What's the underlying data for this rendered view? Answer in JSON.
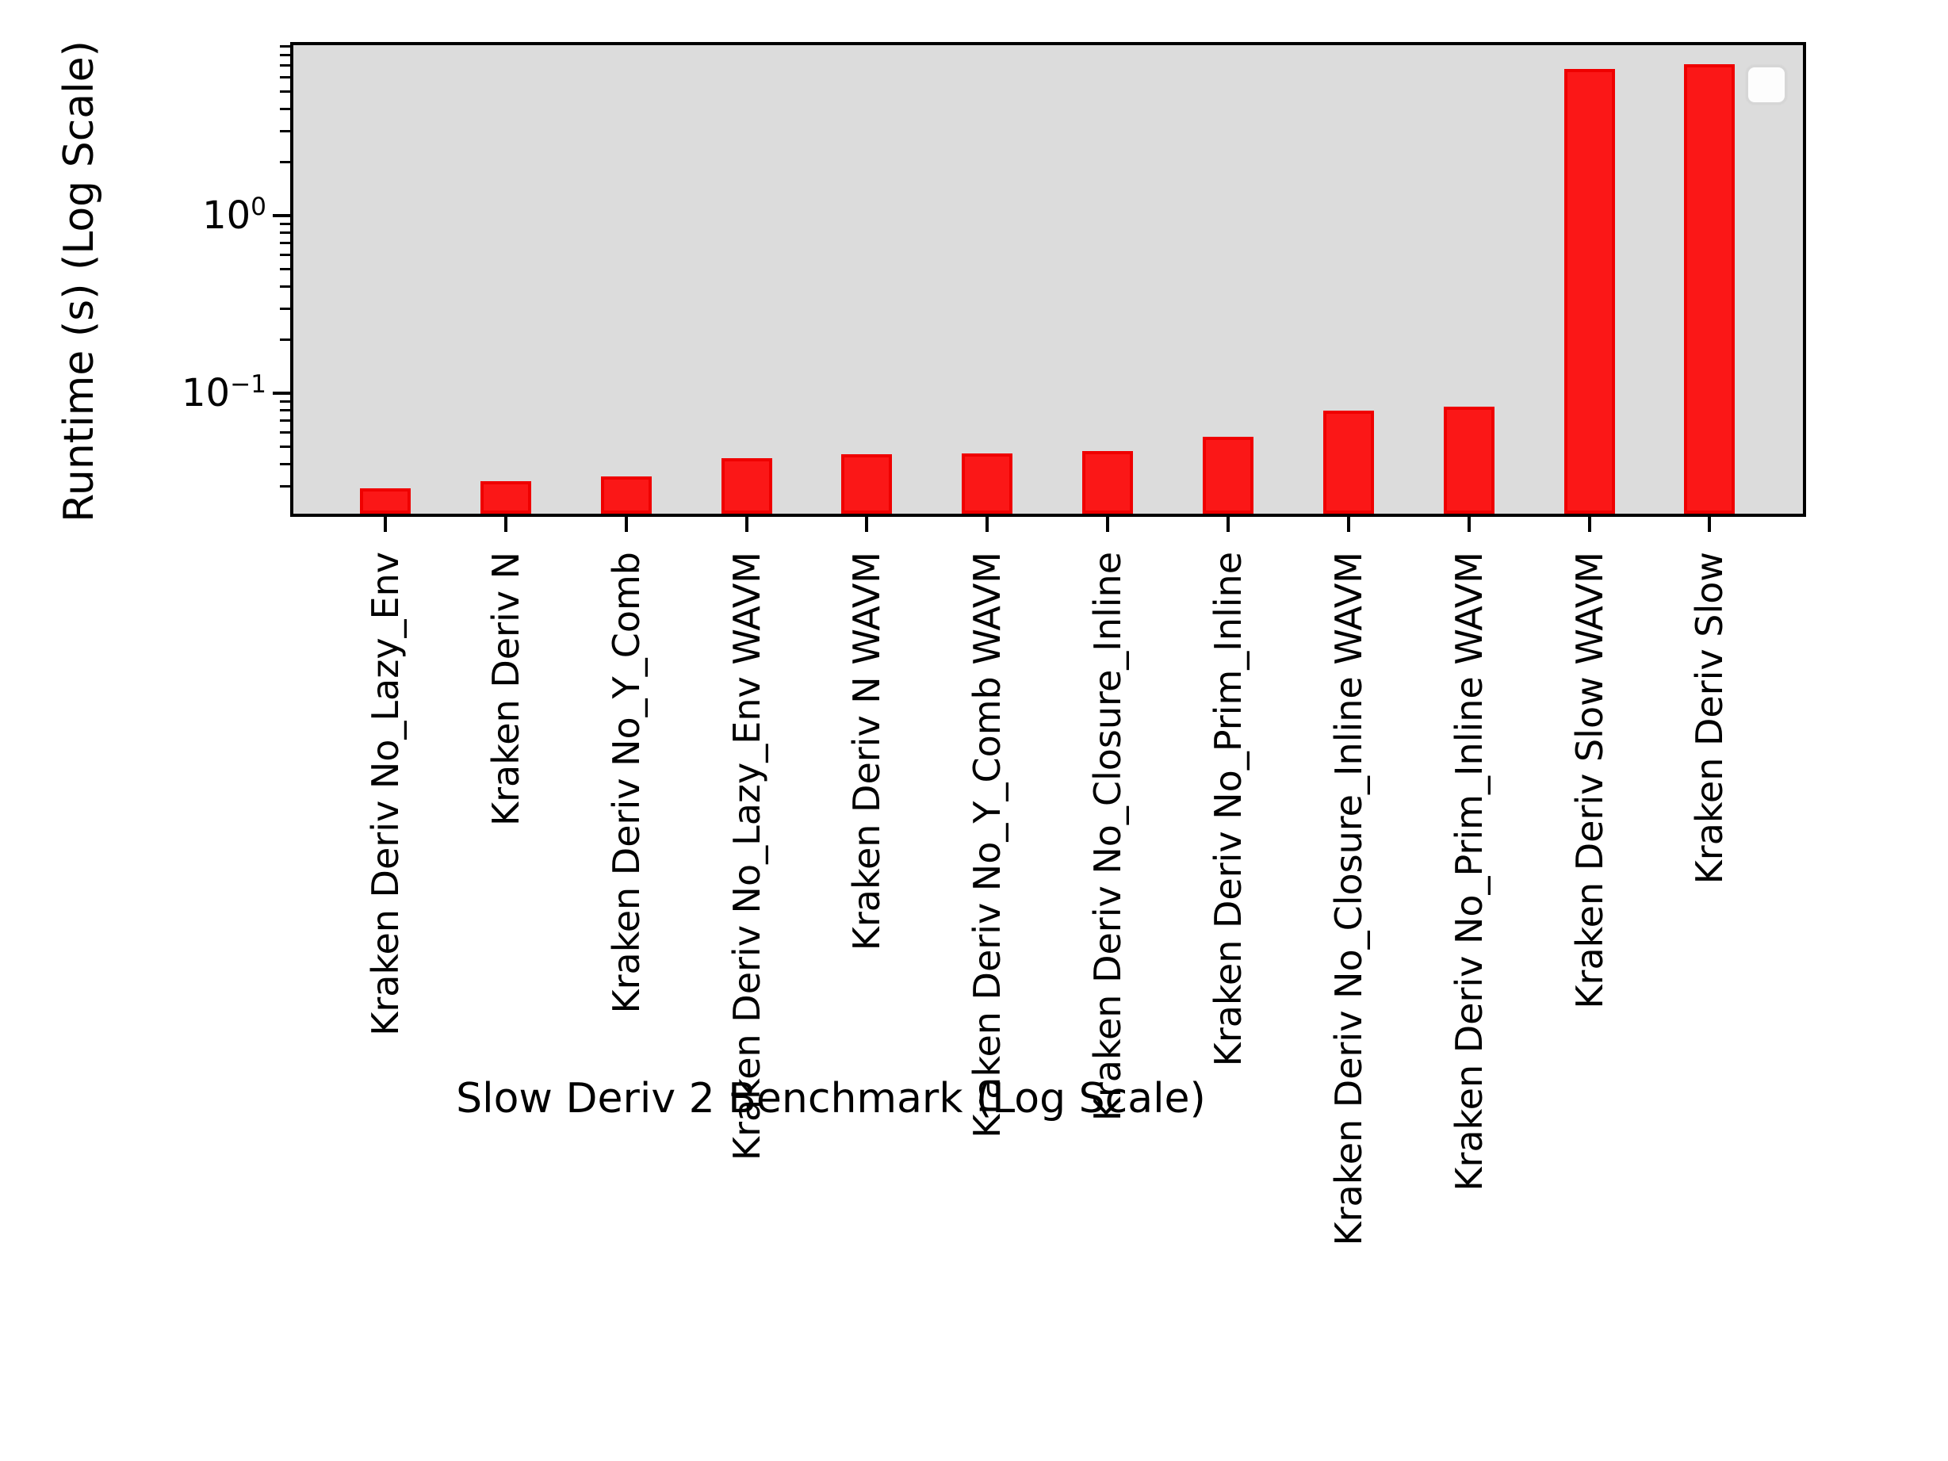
{
  "chart_data": {
    "type": "bar",
    "title": "",
    "xlabel": "Slow Deriv 2 Benchmark (Log Scale)",
    "ylabel": "Runtime (s) (Log Scale)",
    "yscale": "log",
    "ylim": [
      0.022,
      9.3
    ],
    "grid": false,
    "legend": {
      "visible": true,
      "entries": [],
      "position": "upper-right",
      "note": "empty-legend-box"
    },
    "colors": {
      "bar_fill": "#fb1717",
      "bar_edge": "#ef0000",
      "plot_background": "#dcdcdc",
      "figure_background": "#ffffff",
      "spine": "#000000"
    },
    "categories": [
      "Kraken Deriv No_Lazy_Env",
      "Kraken Deriv N",
      "Kraken Deriv No_Y_Comb",
      "Kraken Deriv No_Lazy_Env WAVM",
      "Kraken Deriv N WAVM",
      "Kraken Deriv No_Y_Comb WAVM",
      "Kraken Deriv No_Closure_Inline",
      "Kraken Deriv No_Prim_Inline",
      "Kraken Deriv No_Closure_Inline WAVM",
      "Kraken Deriv No_Prim_Inline WAVM",
      "Kraken Deriv Slow WAVM",
      "Kraken Deriv Slow"
    ],
    "values": [
      0.029,
      0.032,
      0.034,
      0.043,
      0.0455,
      0.046,
      0.047,
      0.057,
      0.08,
      0.084,
      6.7,
      7.1
    ],
    "yticks": [
      {
        "base": "10",
        "exp": "0",
        "value": 1
      },
      {
        "base": "10",
        "exp": "−1",
        "value": 0.1
      }
    ]
  }
}
